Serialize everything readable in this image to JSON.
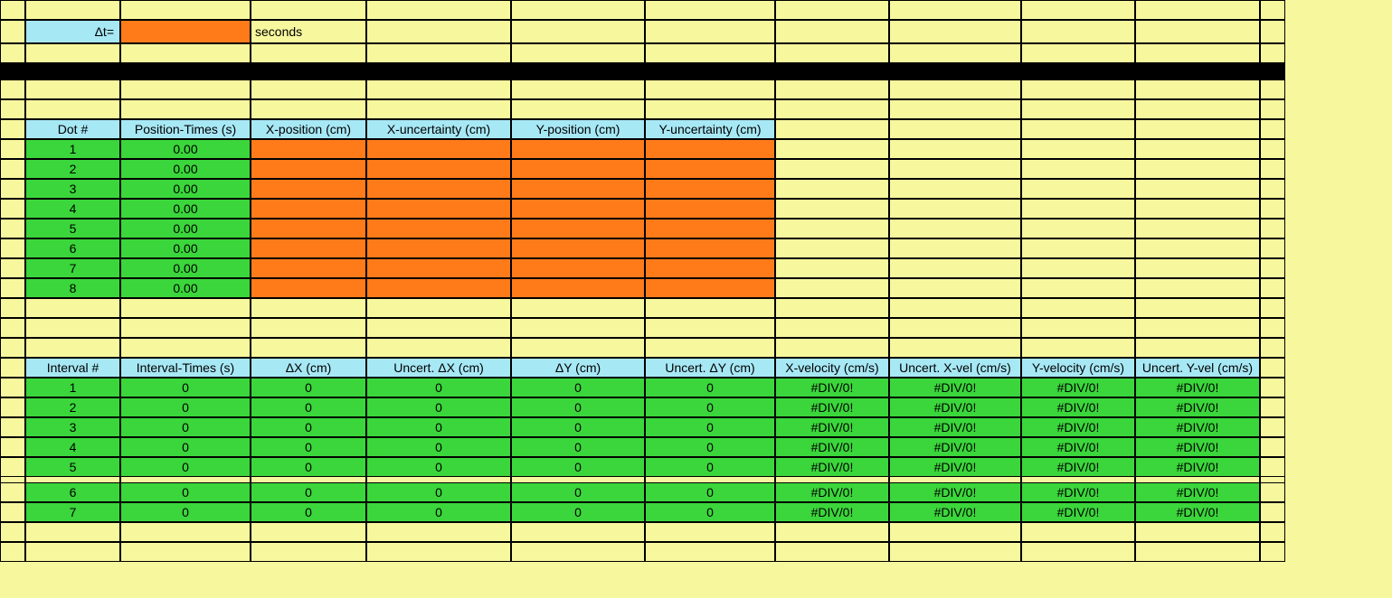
{
  "colors": {
    "background": "#f7f79e",
    "header": "#a7e8f5",
    "input": "#ff7b1a",
    "calc": "#3bd63b",
    "divider": "#000000",
    "border": "#000000"
  },
  "dt": {
    "label": "Δt=",
    "value": "",
    "unit": "seconds"
  },
  "position_table": {
    "headers": [
      "Dot #",
      "Position-Times (s)",
      "X-position (cm)",
      "X-uncertainty (cm)",
      "Y-position (cm)",
      "Y-uncertainty (cm)"
    ],
    "rows": [
      {
        "dot": "1",
        "time": "0.00"
      },
      {
        "dot": "2",
        "time": "0.00"
      },
      {
        "dot": "3",
        "time": "0.00"
      },
      {
        "dot": "4",
        "time": "0.00"
      },
      {
        "dot": "5",
        "time": "0.00"
      },
      {
        "dot": "6",
        "time": "0.00"
      },
      {
        "dot": "7",
        "time": "0.00"
      },
      {
        "dot": "8",
        "time": "0.00"
      }
    ]
  },
  "interval_table": {
    "headers": [
      "Interval #",
      "Interval-Times (s)",
      "ΔX (cm)",
      "Uncert. ΔX (cm)",
      "ΔY (cm)",
      "Uncert. ΔY (cm)",
      "X-velocity (cm/s)",
      "Uncert. X-vel (cm/s)",
      "Y-velocity (cm/s)",
      "Uncert. Y-vel (cm/s)"
    ],
    "rows": [
      {
        "n": "1",
        "t": "0",
        "dx": "0",
        "udx": "0",
        "dy": "0",
        "udy": "0",
        "xv": "#DIV/0!",
        "uxv": "#DIV/0!",
        "yv": "#DIV/0!",
        "uyv": "#DIV/0!"
      },
      {
        "n": "2",
        "t": "0",
        "dx": "0",
        "udx": "0",
        "dy": "0",
        "udy": "0",
        "xv": "#DIV/0!",
        "uxv": "#DIV/0!",
        "yv": "#DIV/0!",
        "uyv": "#DIV/0!"
      },
      {
        "n": "3",
        "t": "0",
        "dx": "0",
        "udx": "0",
        "dy": "0",
        "udy": "0",
        "xv": "#DIV/0!",
        "uxv": "#DIV/0!",
        "yv": "#DIV/0!",
        "uyv": "#DIV/0!"
      },
      {
        "n": "4",
        "t": "0",
        "dx": "0",
        "udx": "0",
        "dy": "0",
        "udy": "0",
        "xv": "#DIV/0!",
        "uxv": "#DIV/0!",
        "yv": "#DIV/0!",
        "uyv": "#DIV/0!"
      },
      {
        "n": "5",
        "t": "0",
        "dx": "0",
        "udx": "0",
        "dy": "0",
        "udy": "0",
        "xv": "#DIV/0!",
        "uxv": "#DIV/0!",
        "yv": "#DIV/0!",
        "uyv": "#DIV/0!"
      },
      {
        "n": "6",
        "t": "0",
        "dx": "0",
        "udx": "0",
        "dy": "0",
        "udy": "0",
        "xv": "#DIV/0!",
        "uxv": "#DIV/0!",
        "yv": "#DIV/0!",
        "uyv": "#DIV/0!"
      },
      {
        "n": "7",
        "t": "0",
        "dx": "0",
        "udx": "0",
        "dy": "0",
        "udy": "0",
        "xv": "#DIV/0!",
        "uxv": "#DIV/0!",
        "yv": "#DIV/0!",
        "uyv": "#DIV/0!"
      }
    ]
  }
}
